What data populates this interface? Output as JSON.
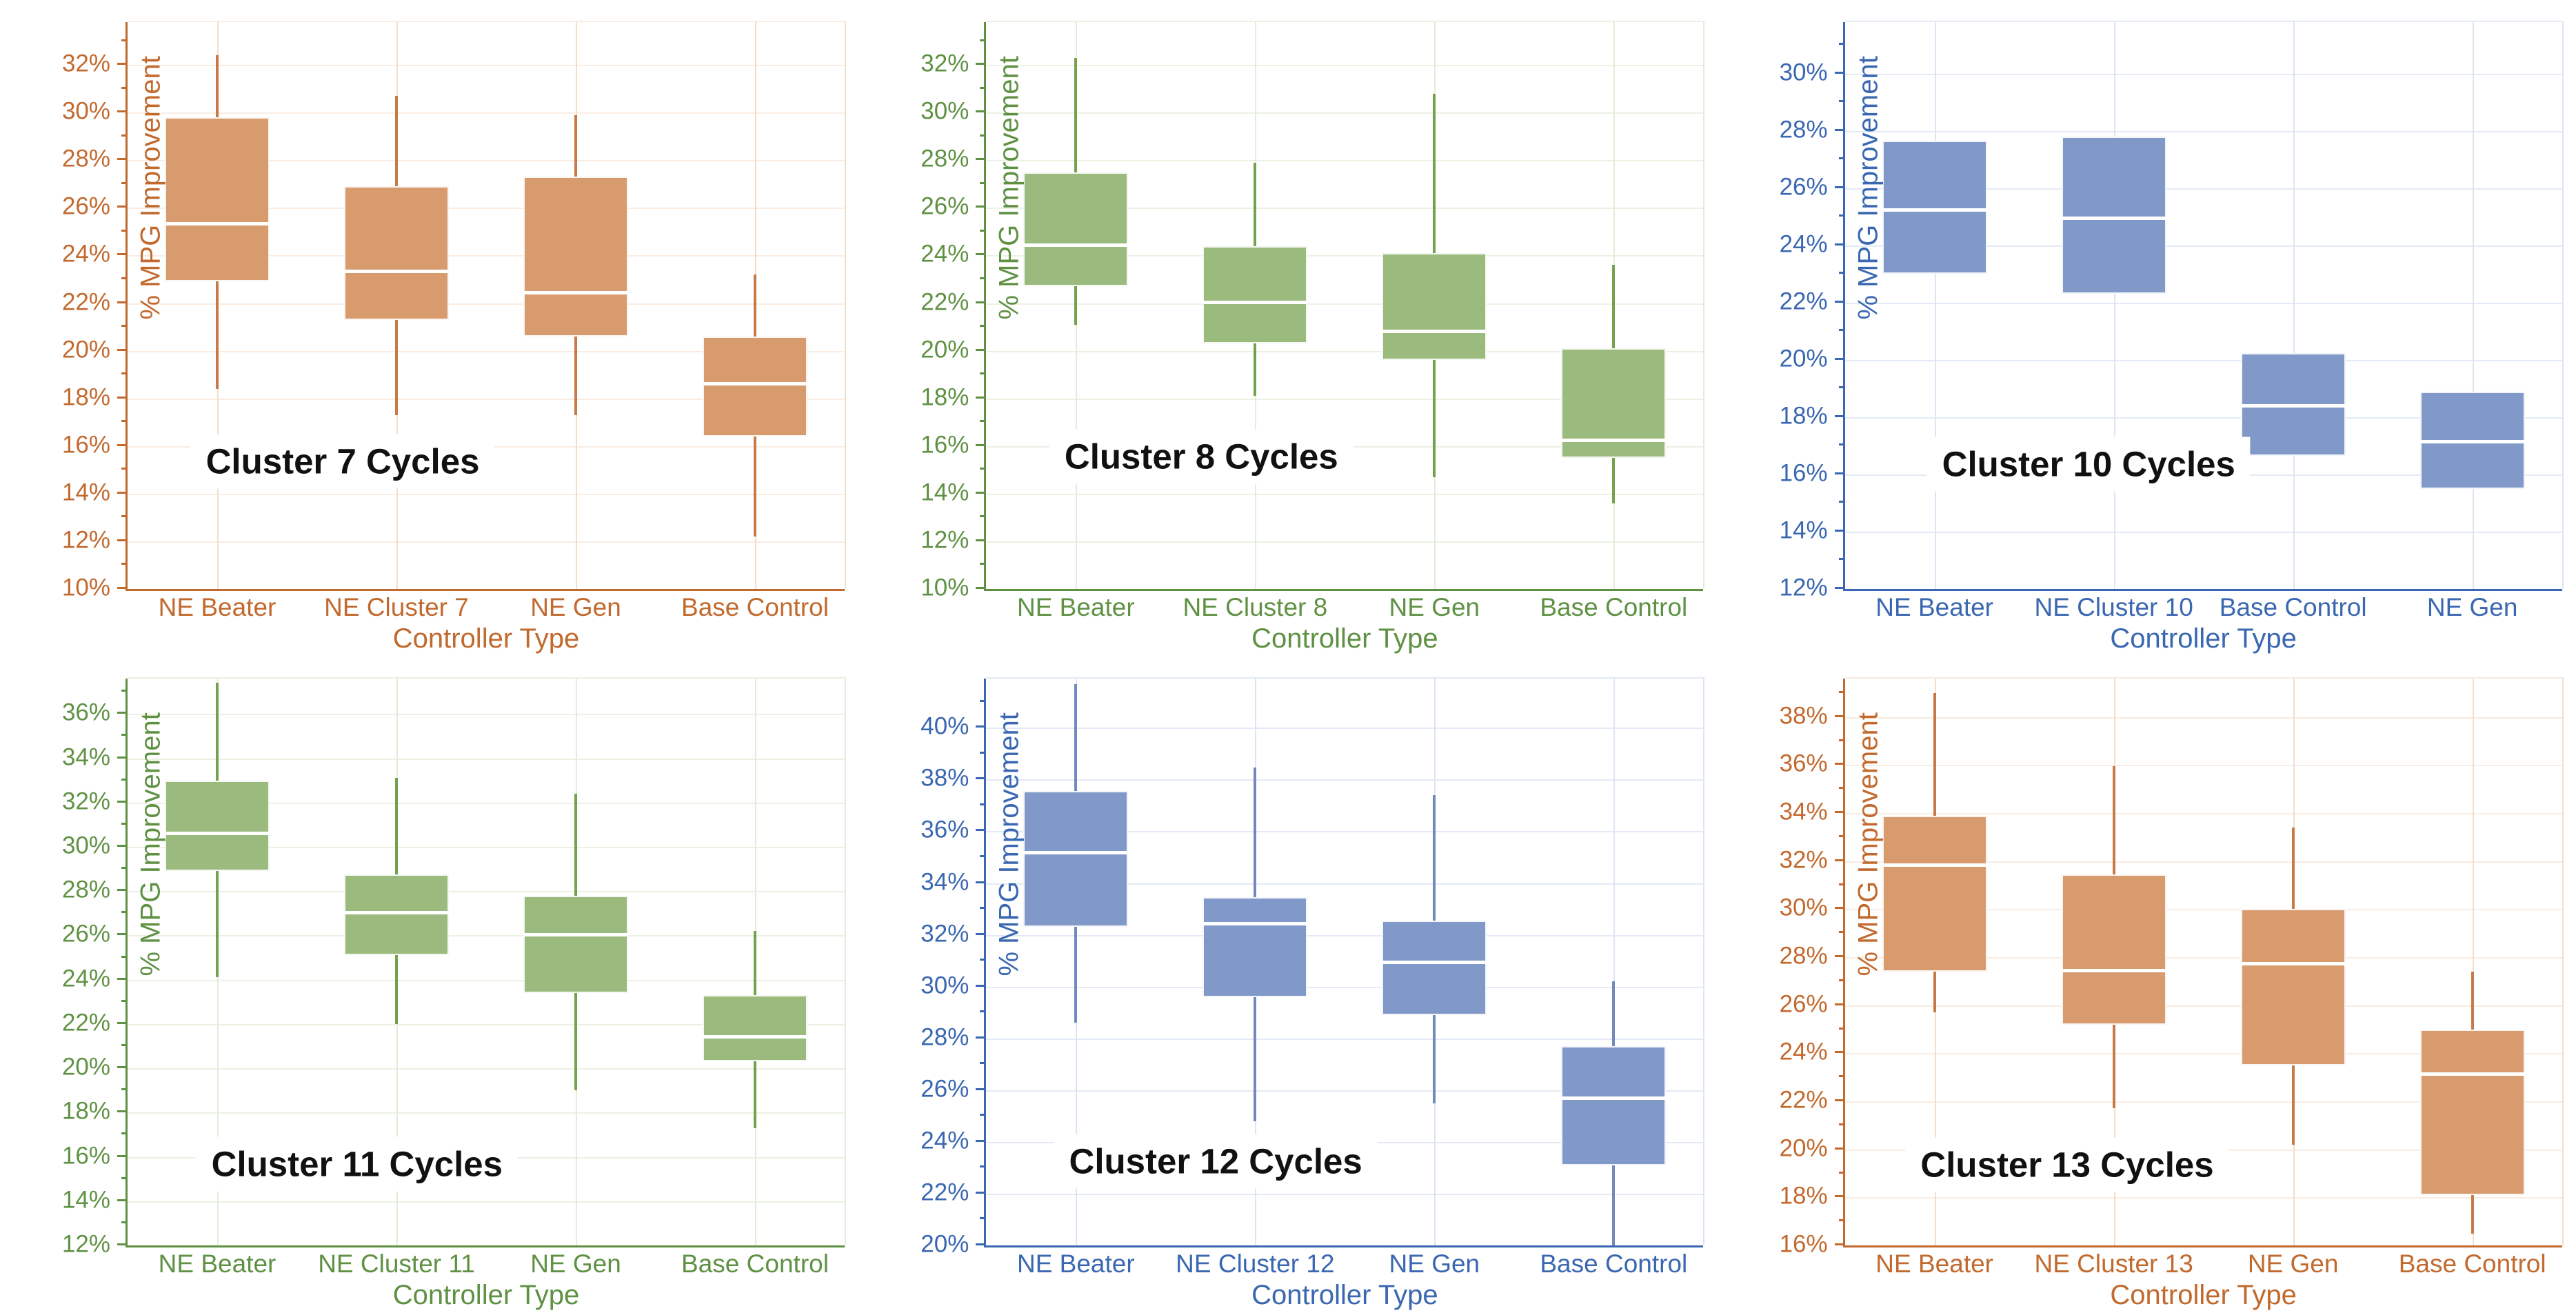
{
  "themes": {
    "orange": {
      "text": "#C2692E",
      "axis": "#C2692E",
      "box_fill": "#D89B6E",
      "whisker": "#C67B46",
      "grid": "#F9ECE2",
      "vgrid": "#F3DECC"
    },
    "green": {
      "text": "#5F9143",
      "axis": "#5F9143",
      "box_fill": "#9BBA7E",
      "whisker": "#74A24C",
      "grid": "#EBF2E4",
      "vgrid": "#E2EDD9"
    },
    "blue": {
      "text": "#3A67B1",
      "axis": "#3A67B1",
      "box_fill": "#8199C9",
      "whisker": "#7288BE",
      "grid": "#E4EAF5",
      "vgrid": "#DCE5F2"
    }
  },
  "chart_data": [
    {
      "type": "boxplot",
      "title": "Cluster 7 Cycles",
      "theme": "orange",
      "xlabel": "Controller Type",
      "ylabel": "% MPG Improvement",
      "ymin": 10,
      "ymax": 33.8,
      "yticks": [
        10,
        12,
        14,
        16,
        18,
        20,
        22,
        24,
        26,
        28,
        30,
        32
      ],
      "title_anchor": {
        "fx": 0.3,
        "value": 15.3
      },
      "categories": [
        "NE Beater",
        "NE Cluster 7",
        "NE Gen",
        "Base Control"
      ],
      "boxes": [
        {
          "low": 18.4,
          "q1": 22.9,
          "median": 25.4,
          "q3": 29.8,
          "high": 32.4
        },
        {
          "low": 17.3,
          "q1": 21.3,
          "median": 23.4,
          "q3": 26.9,
          "high": 30.7
        },
        {
          "low": 17.3,
          "q1": 20.6,
          "median": 22.5,
          "q3": 27.3,
          "high": 29.9
        },
        {
          "low": 12.2,
          "q1": 16.4,
          "median": 18.7,
          "q3": 20.6,
          "high": 23.2
        }
      ]
    },
    {
      "type": "boxplot",
      "title": "Cluster 8 Cycles",
      "theme": "green",
      "xlabel": "Controller Type",
      "ylabel": "% MPG Improvement",
      "ymin": 10,
      "ymax": 33.8,
      "yticks": [
        10,
        12,
        14,
        16,
        18,
        20,
        22,
        24,
        26,
        28,
        30,
        32
      ],
      "title_anchor": {
        "fx": 0.3,
        "value": 15.5
      },
      "categories": [
        "NE Beater",
        "NE Cluster 8",
        "NE Gen",
        "Base Control"
      ],
      "boxes": [
        {
          "low": 21.1,
          "q1": 22.7,
          "median": 24.5,
          "q3": 27.5,
          "high": 32.3
        },
        {
          "low": 18.1,
          "q1": 20.3,
          "median": 22.1,
          "q3": 24.4,
          "high": 27.9
        },
        {
          "low": 14.7,
          "q1": 19.6,
          "median": 20.9,
          "q3": 24.1,
          "high": 30.8
        },
        {
          "low": 13.6,
          "q1": 15.5,
          "median": 16.3,
          "q3": 20.1,
          "high": 23.6
        }
      ]
    },
    {
      "type": "boxplot",
      "title": "Cluster 10 Cycles",
      "theme": "blue",
      "xlabel": "Controller Type",
      "ylabel": "% MPG Improvement",
      "ymin": 12,
      "ymax": 31.8,
      "yticks": [
        12,
        14,
        16,
        18,
        20,
        22,
        24,
        26,
        28,
        30
      ],
      "title_anchor": {
        "fx": 0.34,
        "value": 16.3
      },
      "categories": [
        "NE Beater",
        "NE Cluster 10",
        "Base Control",
        "NE Gen"
      ],
      "boxes": [
        {
          "low": null,
          "q1": 23.0,
          "median": 25.3,
          "q3": 27.65,
          "high": null
        },
        {
          "low": null,
          "q1": 22.3,
          "median": 25.0,
          "q3": 27.8,
          "high": null
        },
        {
          "low": null,
          "q1": 16.65,
          "median": 18.45,
          "q3": 20.25,
          "high": null
        },
        {
          "low": null,
          "q1": 15.5,
          "median": 17.2,
          "q3": 18.9,
          "high": null
        }
      ]
    },
    {
      "type": "boxplot",
      "title": "Cluster 11 Cycles",
      "theme": "green",
      "xlabel": "Controller Type",
      "ylabel": "% MPG Improvement",
      "ymin": 12,
      "ymax": 37.6,
      "yticks": [
        12,
        14,
        16,
        18,
        20,
        22,
        24,
        26,
        28,
        30,
        32,
        34,
        36
      ],
      "title_anchor": {
        "fx": 0.32,
        "value": 15.6
      },
      "categories": [
        "NE Beater",
        "NE Cluster 11",
        "NE Gen",
        "Base Control"
      ],
      "boxes": [
        {
          "low": 24.1,
          "q1": 28.9,
          "median": 30.7,
          "q3": 33.0,
          "high": 37.4
        },
        {
          "low": 22.0,
          "q1": 25.1,
          "median": 27.1,
          "q3": 28.75,
          "high": 33.1
        },
        {
          "low": 19.0,
          "q1": 23.4,
          "median": 26.1,
          "q3": 27.8,
          "high": 32.4
        },
        {
          "low": 17.3,
          "q1": 20.3,
          "median": 21.5,
          "q3": 23.3,
          "high": 26.2
        }
      ]
    },
    {
      "type": "boxplot",
      "title": "Cluster 12 Cycles",
      "theme": "blue",
      "xlabel": "Controller Type",
      "ylabel": "% MPG Improvement",
      "ymin": 20,
      "ymax": 41.9,
      "yticks": [
        20,
        22,
        24,
        26,
        28,
        30,
        32,
        34,
        36,
        38,
        40
      ],
      "title_anchor": {
        "fx": 0.32,
        "value": 23.2
      },
      "categories": [
        "NE Beater",
        "NE Cluster 12",
        "NE Gen",
        "Base Control"
      ],
      "boxes": [
        {
          "low": 28.6,
          "q1": 32.3,
          "median": 35.25,
          "q3": 37.55,
          "high": 41.7
        },
        {
          "low": 24.8,
          "q1": 29.6,
          "median": 32.5,
          "q3": 33.45,
          "high": 38.45
        },
        {
          "low": 25.5,
          "q1": 28.9,
          "median": 31.0,
          "q3": 32.55,
          "high": 37.4
        },
        {
          "low": 20.0,
          "q1": 23.1,
          "median": 25.75,
          "q3": 27.7,
          "high": 30.2
        }
      ]
    },
    {
      "type": "boxplot",
      "title": "Cluster 13 Cycles",
      "theme": "orange",
      "xlabel": "Controller Type",
      "ylabel": "% MPG Improvement",
      "ymin": 16,
      "ymax": 39.6,
      "yticks": [
        16,
        18,
        20,
        22,
        24,
        26,
        28,
        30,
        32,
        34,
        36,
        38
      ],
      "title_anchor": {
        "fx": 0.31,
        "value": 19.3
      },
      "categories": [
        "NE Beater",
        "NE Cluster 13",
        "NE Gen",
        "Base Control"
      ],
      "boxes": [
        {
          "low": 25.7,
          "q1": 27.4,
          "median": 31.9,
          "q3": 33.9,
          "high": 39.0
        },
        {
          "low": 21.7,
          "q1": 25.2,
          "median": 27.5,
          "q3": 31.45,
          "high": 35.95
        },
        {
          "low": 20.2,
          "q1": 23.5,
          "median": 27.8,
          "q3": 30.0,
          "high": 33.4
        },
        {
          "low": 16.5,
          "q1": 18.1,
          "median": 23.2,
          "q3": 25.0,
          "high": 27.4
        }
      ]
    }
  ]
}
